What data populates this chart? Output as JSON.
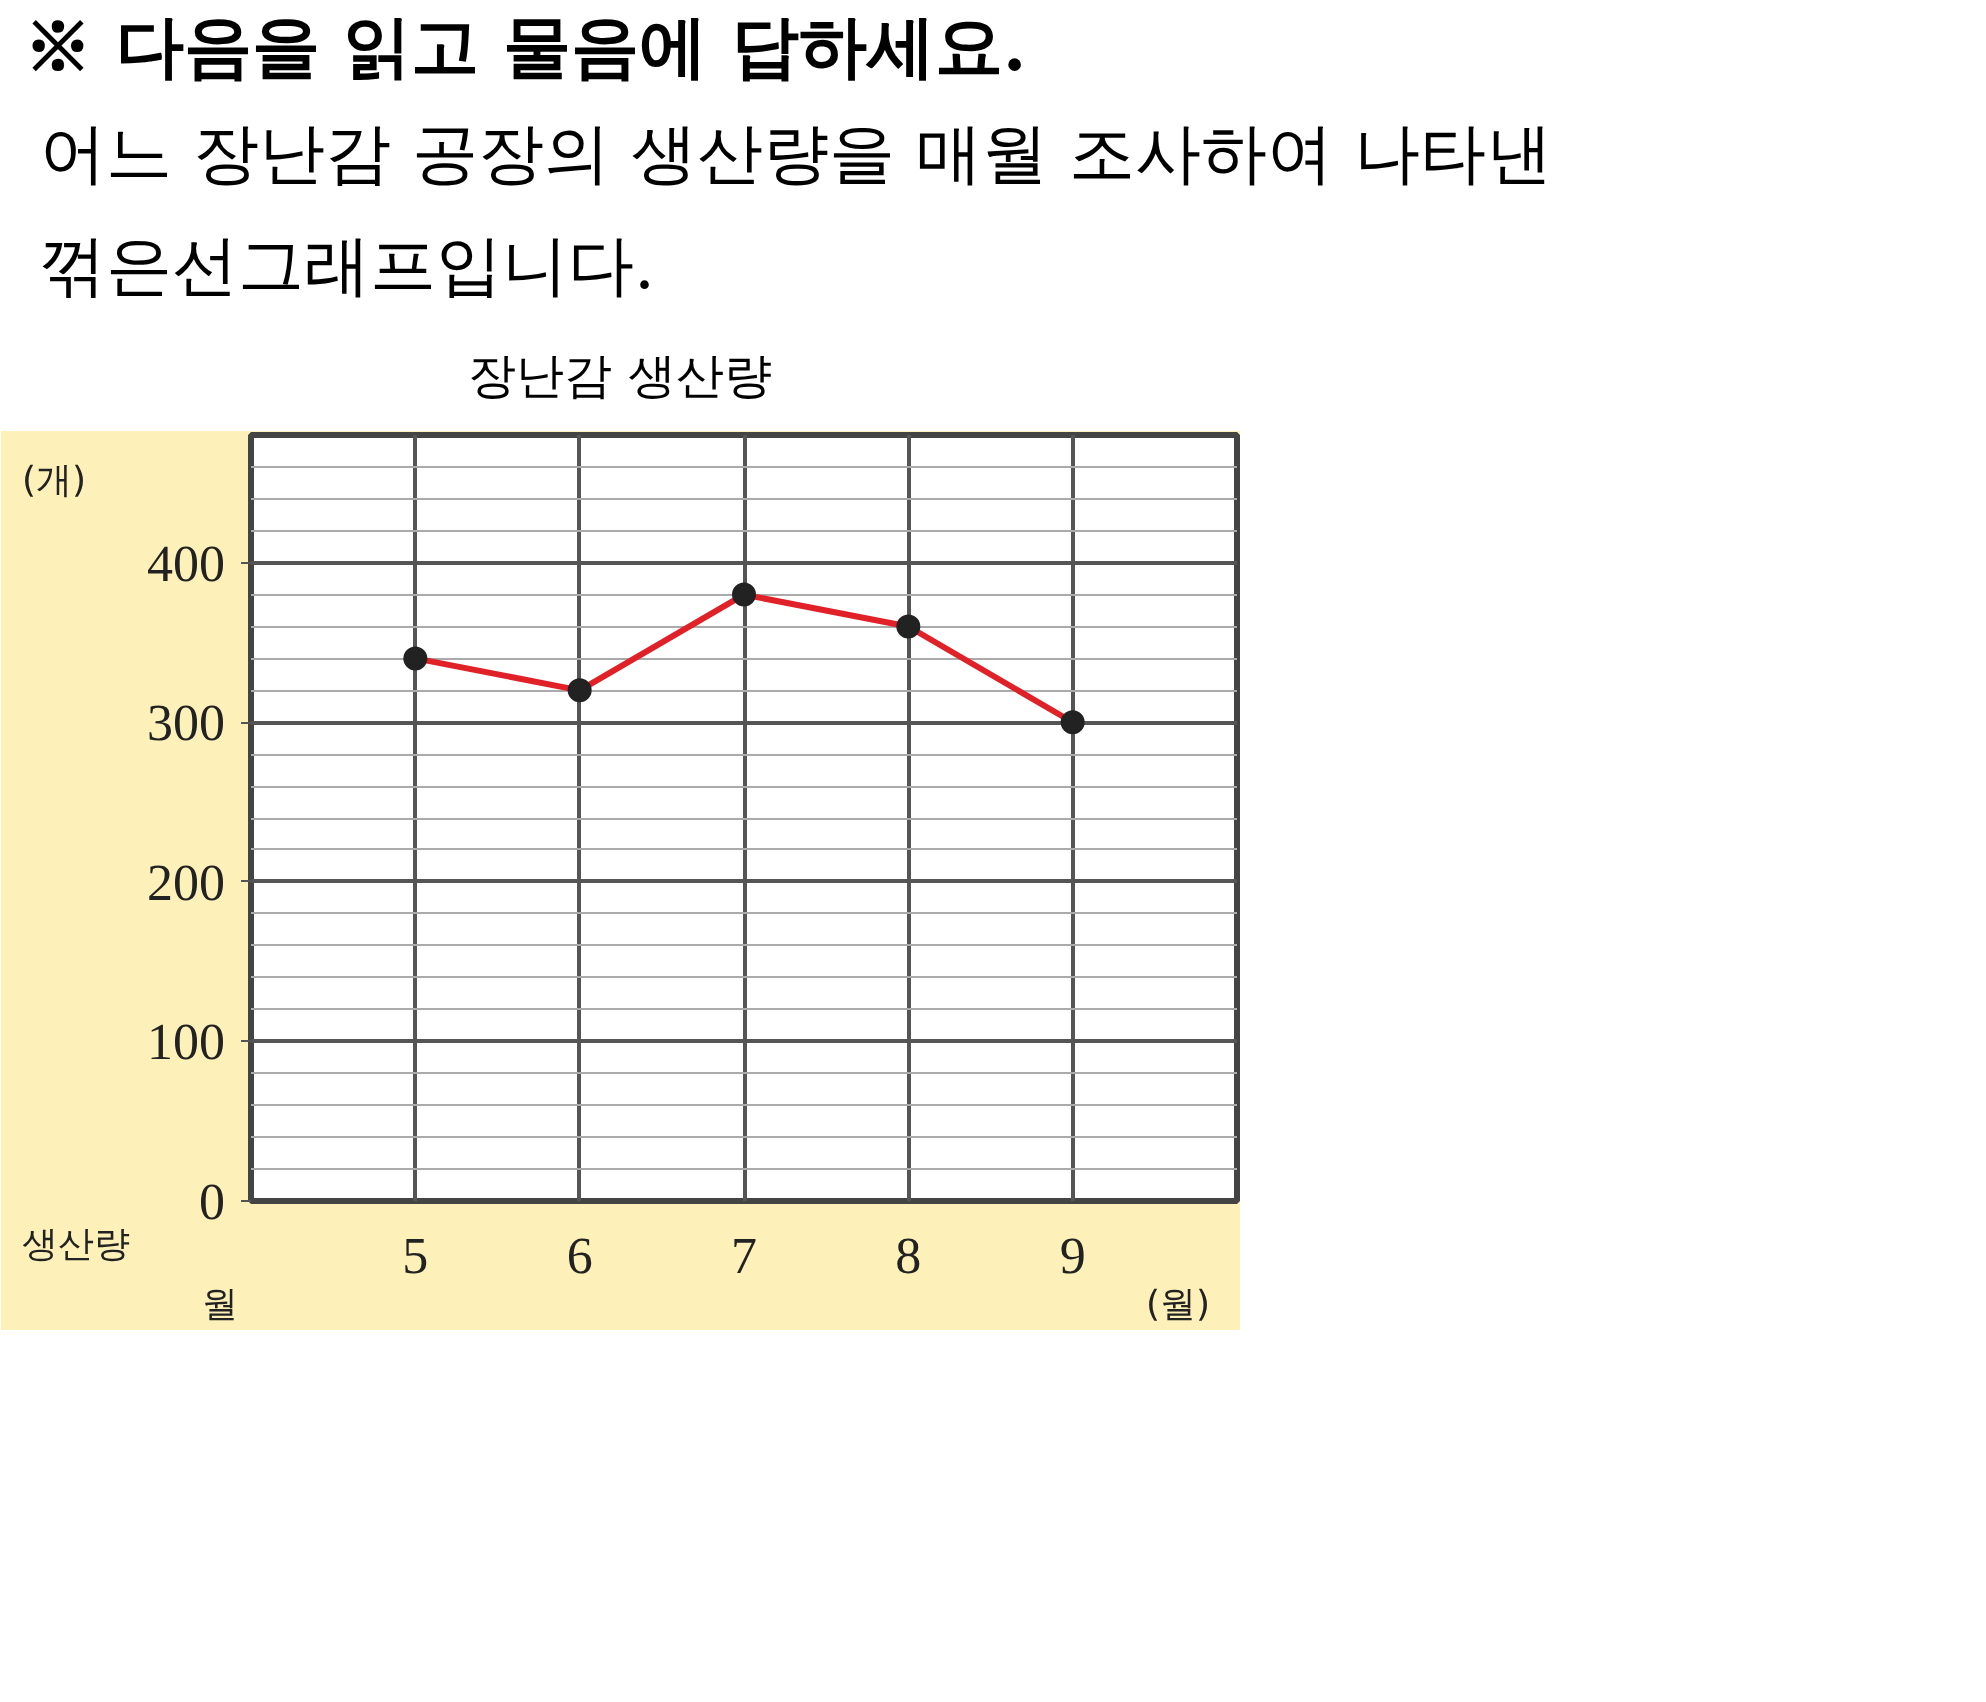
{
  "chart_data": {
    "type": "line",
    "title": "장난감 생산량",
    "subtitle": "어느 장난감 공장의 생산량을 매월 조사하여 나타낸 꺾은선그래프입니다.",
    "annotations": [
      "※ 다음을 읽고 물음에 답하세요.",
      "생산량",
      "월"
    ],
    "xlabel": "(월)",
    "ylabel": "(개)",
    "categories": [
      "5",
      "6",
      "7",
      "8",
      "9"
    ],
    "series": [
      {
        "color": "#e02128",
        "marker": "none",
        "values": [
          340,
          320,
          380,
          360,
          300
        ]
      },
      {
        "type": "scatter",
        "color": "#222222",
        "marker": "circle",
        "values": [
          340,
          320,
          380,
          360,
          300
        ]
      }
    ],
    "ylim": [
      0,
      480
    ],
    "yticks": [
      0,
      100,
      200,
      300,
      400
    ],
    "grid": true,
    "line_style": "solid"
  }
}
